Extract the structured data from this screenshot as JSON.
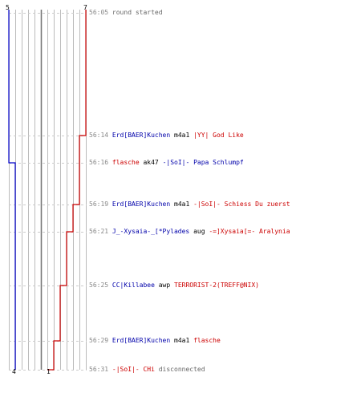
{
  "colors": {
    "blue_team": "#0000cc",
    "red_team": "#cc0000",
    "grid": "#bbbbbb",
    "dashed": "#cccccc",
    "time": "#888888",
    "plain": "#000000",
    "muted": "#666666"
  },
  "counts": {
    "blue_start": "5",
    "red_start": "7",
    "blue_end": "4",
    "red_end": "1"
  },
  "events": [
    {
      "time": "56:05",
      "parts": [
        {
          "text": "round started",
          "tone": "grey"
        }
      ]
    },
    {
      "time": "56:14",
      "parts": [
        {
          "text": "Erd[BAER]Kuchen",
          "tone": "blue"
        },
        {
          "text": "m4a1",
          "tone": "plain"
        },
        {
          "text": "|YY| God Like",
          "tone": "red"
        }
      ]
    },
    {
      "time": "56:16",
      "parts": [
        {
          "text": "flasche",
          "tone": "red"
        },
        {
          "text": "ak47",
          "tone": "plain"
        },
        {
          "text": "-|SoI|- Papa Schlumpf",
          "tone": "blue"
        }
      ]
    },
    {
      "time": "56:19",
      "parts": [
        {
          "text": "Erd[BAER]Kuchen",
          "tone": "blue"
        },
        {
          "text": "m4a1",
          "tone": "plain"
        },
        {
          "text": "-|SoI|- Schiess Du zuerst",
          "tone": "red"
        }
      ]
    },
    {
      "time": "56:21",
      "parts": [
        {
          "text": "J_-Xysaia-_[*Pylades",
          "tone": "blue"
        },
        {
          "text": "aug",
          "tone": "plain"
        },
        {
          "text": "-=]Xysaia[=- Aralynia",
          "tone": "red"
        }
      ]
    },
    {
      "time": "56:25",
      "parts": [
        {
          "text": "CC|Killabee",
          "tone": "blue"
        },
        {
          "text": "awp",
          "tone": "plain"
        },
        {
          "text": "TERRORIST-2(TREFF@NIX)",
          "tone": "red"
        }
      ]
    },
    {
      "time": "56:29",
      "parts": [
        {
          "text": "Erd[BAER]Kuchen",
          "tone": "blue"
        },
        {
          "text": "m4a1",
          "tone": "plain"
        },
        {
          "text": "flasche",
          "tone": "red"
        }
      ]
    },
    {
      "time": "56:31",
      "parts": [
        {
          "text": "-|SoI|- CHi",
          "tone": "red"
        },
        {
          "text": "disconnected",
          "tone": "grey"
        }
      ]
    }
  ],
  "team_counts_after_event": {
    "blue": [
      5,
      5,
      4,
      4,
      4,
      4,
      4,
      4
    ],
    "red": [
      7,
      6,
      6,
      5,
      4,
      3,
      2,
      1
    ]
  }
}
